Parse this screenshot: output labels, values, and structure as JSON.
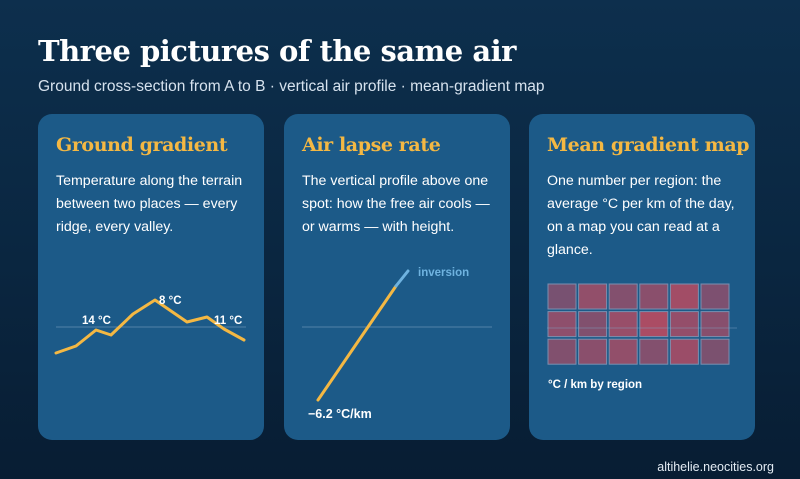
{
  "header": {
    "title": "Three pictures of the same air",
    "subtitle": "Ground cross-section from A to B · vertical air profile · mean-gradient map"
  },
  "cards": [
    {
      "title": "Ground gradient",
      "body": "Temperature along the terrain between two places — every ridge, every valley.",
      "labels": {
        "left": "14 °C",
        "peak": "8 °C",
        "right": "11 °C"
      }
    },
    {
      "title": "Air lapse rate",
      "body": "The vertical profile above one spot: how the free air cools — or warms — with height.",
      "labels": {
        "inversion": "inversion",
        "rate": "−6.2 °C/km"
      }
    },
    {
      "title": "Mean gradient map",
      "body": "One number per region: the average °C per km of the day, on a map you can read at a glance.",
      "labels": {
        "caption": "°C / km by region"
      },
      "grid": {
        "rows": 3,
        "cols": 6
      }
    }
  ],
  "colors": {
    "accent": "#f4b843",
    "card": "#1c5a88",
    "inversion": "#6fb3e0",
    "cell": "#c44a5e"
  },
  "footer": {
    "site": "altihelie.neocities.org"
  }
}
